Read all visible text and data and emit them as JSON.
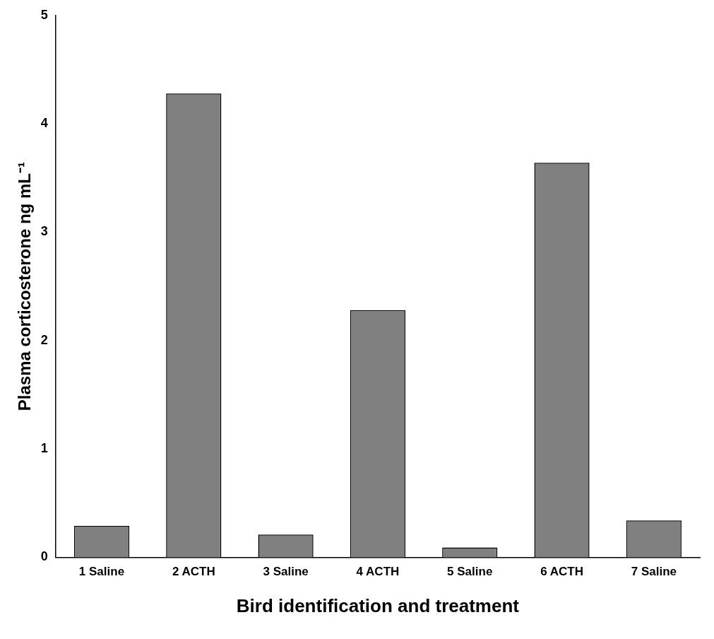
{
  "chart_data": {
    "type": "bar",
    "xlabel": "Bird identification and treatment",
    "ylabel": "Plasma corticosterone ng mL⁻¹",
    "categories": [
      "1 Saline",
      "2 ACTH",
      "3 Saline",
      "4 ACTH",
      "5 Saline",
      "6 ACTH",
      "7 Saline"
    ],
    "values": [
      0.29,
      4.28,
      0.21,
      2.28,
      0.09,
      3.64,
      0.34
    ],
    "color": "#808080",
    "ylim": [
      0,
      5
    ],
    "yticks": [
      0,
      1,
      2,
      3,
      4,
      5
    ],
    "grid": false,
    "legend": false
  }
}
